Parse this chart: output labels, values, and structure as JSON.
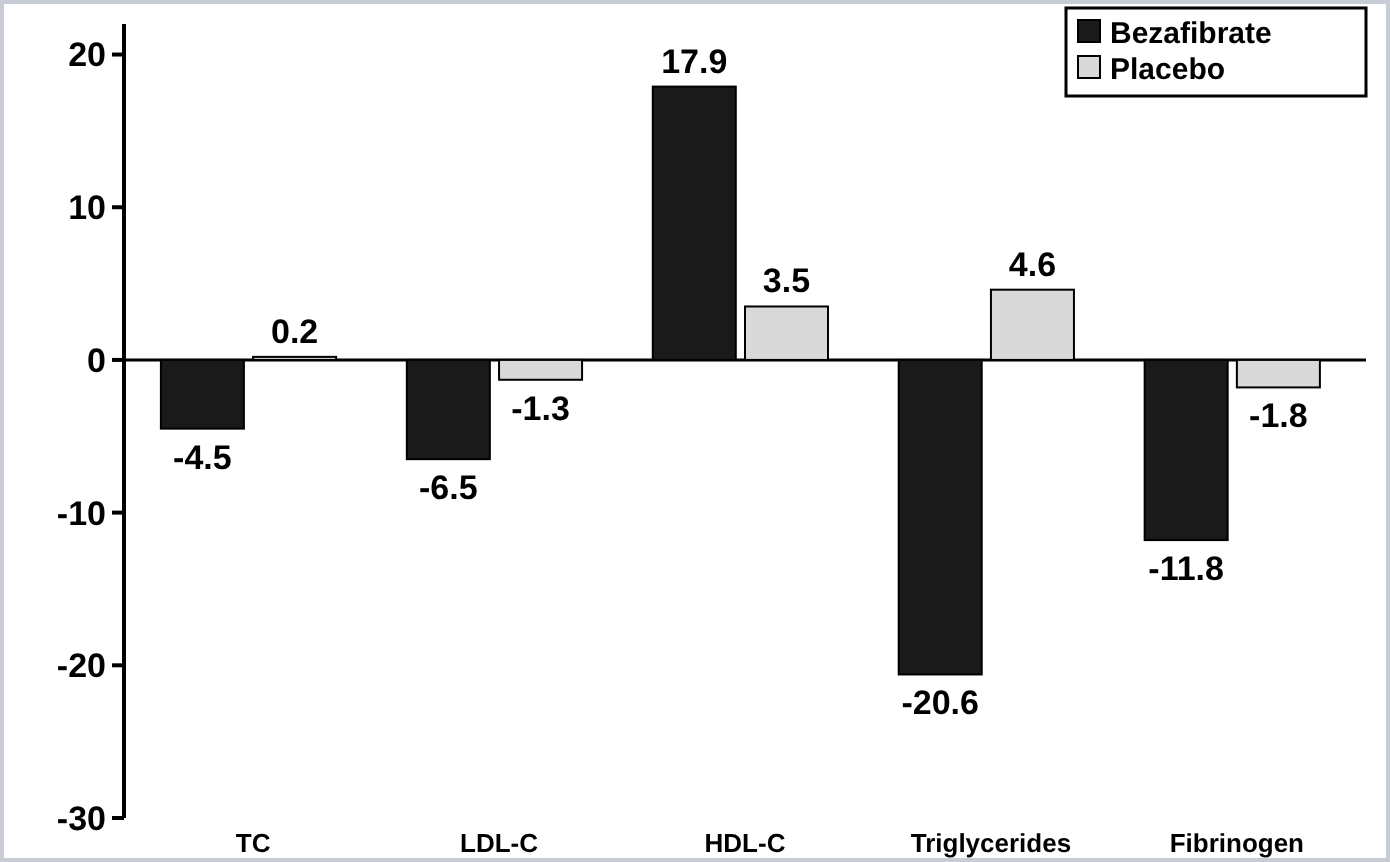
{
  "chart_data": {
    "type": "bar",
    "categories": [
      "TC",
      "LDL-C",
      "HDL-C",
      "Triglycerides",
      "Fibrinogen"
    ],
    "series": [
      {
        "name": "Bezafibrate",
        "color": "#1a1a1a",
        "values": [
          -4.5,
          -6.5,
          17.9,
          -20.6,
          -11.8
        ]
      },
      {
        "name": "Placebo",
        "color": "#d9d9d9",
        "values": [
          0.2,
          -1.3,
          3.5,
          4.6,
          -1.8
        ]
      }
    ],
    "ylim": [
      -30,
      22
    ],
    "yticks": [
      -30,
      -20,
      -10,
      0,
      10,
      20
    ],
    "ref_lines": [
      {
        "axis": "y",
        "value": 0
      }
    ],
    "legend": "top right",
    "data_labels": true
  }
}
